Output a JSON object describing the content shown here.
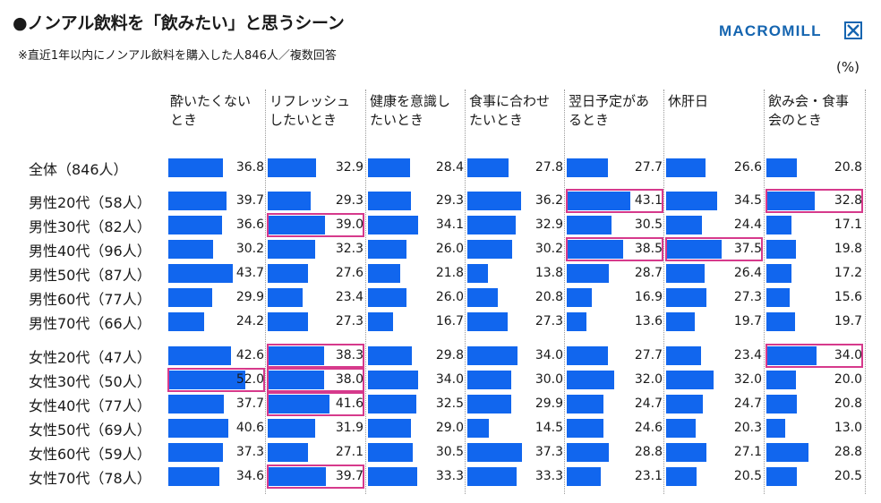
{
  "header": {
    "title": "●ノンアル飲料を「飲みたい」と思うシーン",
    "subtitle": "※直近1年以内にノンアル飲料を購入した人846人／複数回答",
    "unit": "(%)",
    "logo_text": "MACROMILL"
  },
  "colors": {
    "bar": "#1166ee",
    "highlight": "#d63a8c",
    "logo": "#1565b0"
  },
  "chart_data": {
    "type": "bar",
    "title": "●ノンアル飲料を「飲みたい」と思うシーン",
    "subtitle": "※直近1年以内にノンアル飲料を購入した人846人／複数回答",
    "unit": "(%)",
    "columns": [
      "酔いたくないとき",
      "リフレッシュしたいとき",
      "健康を意識したいとき",
      "食事に合わせたいとき",
      "翌日予定があるとき",
      "休肝日",
      "飲み会・食事会のとき"
    ],
    "column_header_lines": [
      [
        "酔いたくない",
        "とき"
      ],
      [
        "リフレッシュ",
        "したいとき"
      ],
      [
        "健康を意識し",
        "たいとき"
      ],
      [
        "食事に合わせ",
        "たいとき"
      ],
      [
        "翌日予定があ",
        "るとき"
      ],
      [
        "休肝日",
        ""
      ],
      [
        "飲み会・食事",
        "会のとき"
      ]
    ],
    "rows": [
      {
        "label": "全体（846人）",
        "values": [
          36.8,
          32.9,
          28.4,
          27.8,
          27.7,
          26.6,
          20.8
        ],
        "highlight": []
      },
      {
        "label": "男性20代（58人）",
        "values": [
          39.7,
          29.3,
          29.3,
          36.2,
          43.1,
          34.5,
          32.8
        ],
        "highlight": [
          4,
          6
        ]
      },
      {
        "label": "男性30代（82人）",
        "values": [
          36.6,
          39.0,
          34.1,
          32.9,
          30.5,
          24.4,
          17.1
        ],
        "highlight": [
          1
        ]
      },
      {
        "label": "男性40代（96人）",
        "values": [
          30.2,
          32.3,
          26.0,
          30.2,
          38.5,
          37.5,
          19.8
        ],
        "highlight": [
          4,
          5
        ]
      },
      {
        "label": "男性50代（87人）",
        "values": [
          43.7,
          27.6,
          21.8,
          13.8,
          28.7,
          26.4,
          17.2
        ],
        "highlight": []
      },
      {
        "label": "男性60代（77人）",
        "values": [
          29.9,
          23.4,
          26.0,
          20.8,
          16.9,
          27.3,
          15.6
        ],
        "highlight": []
      },
      {
        "label": "男性70代（66人）",
        "values": [
          24.2,
          27.3,
          16.7,
          27.3,
          13.6,
          19.7,
          19.7
        ],
        "highlight": []
      },
      {
        "label": "女性20代（47人）",
        "values": [
          42.6,
          38.3,
          29.8,
          34.0,
          27.7,
          23.4,
          34.0
        ],
        "highlight": [
          1,
          6
        ]
      },
      {
        "label": "女性30代（50人）",
        "values": [
          52.0,
          38.0,
          34.0,
          30.0,
          32.0,
          32.0,
          20.0
        ],
        "highlight": [
          0,
          1
        ]
      },
      {
        "label": "女性40代（77人）",
        "values": [
          37.7,
          41.6,
          32.5,
          29.9,
          24.7,
          24.7,
          20.8
        ],
        "highlight": [
          1
        ]
      },
      {
        "label": "女性50代（69人）",
        "values": [
          40.6,
          31.9,
          29.0,
          14.5,
          24.6,
          20.3,
          13.0
        ],
        "highlight": []
      },
      {
        "label": "女性60代（59人）",
        "values": [
          37.3,
          27.1,
          30.5,
          37.3,
          28.8,
          27.1,
          28.8
        ],
        "highlight": []
      },
      {
        "label": "女性70代（78人）",
        "values": [
          34.6,
          39.7,
          33.3,
          33.3,
          23.1,
          20.5,
          20.5
        ],
        "highlight": [
          1
        ]
      }
    ],
    "grid": false,
    "legend": "none"
  }
}
